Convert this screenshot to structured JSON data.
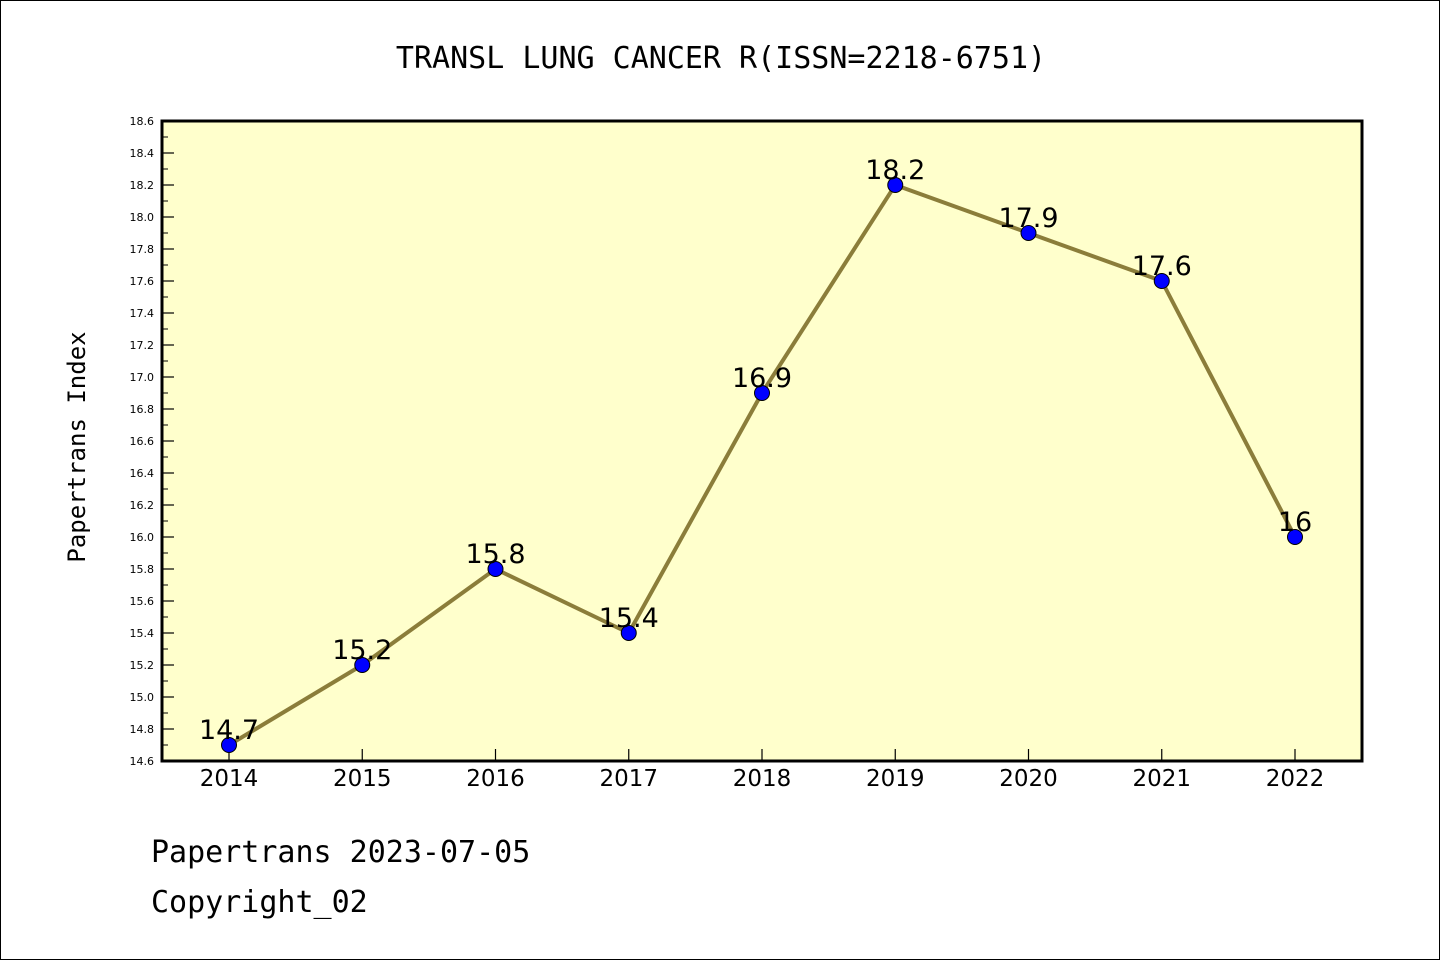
{
  "chart_data": {
    "type": "line",
    "title": "TRANSL LUNG CANCER R(ISSN=2218-6751)",
    "xlabel": "",
    "ylabel": "Papertrans Index",
    "categories": [
      "2014",
      "2015",
      "2016",
      "2017",
      "2018",
      "2019",
      "2020",
      "2021",
      "2022"
    ],
    "series": [
      {
        "values": [
          14.7,
          15.2,
          15.8,
          15.4,
          16.9,
          18.2,
          17.9,
          17.6,
          16.0
        ],
        "labels": [
          "14.7",
          "15.2",
          "15.8",
          "15.4",
          "16.9",
          "18.2",
          "17.9",
          "17.6",
          "16"
        ]
      }
    ],
    "ylim": [
      14.6,
      18.6
    ],
    "yticks": [
      "14.6",
      "14.8",
      "15.0",
      "15.2",
      "15.4",
      "15.6",
      "15.8",
      "16.0",
      "16.2",
      "16.4",
      "16.6",
      "16.8",
      "17.0",
      "17.2",
      "17.4",
      "17.6",
      "17.8",
      "18.0",
      "18.2",
      "18.4",
      "18.6"
    ],
    "grid": false,
    "legend": "none",
    "colors": {
      "plot_background": "#ffffcc",
      "line": "#8b7d3a",
      "marker": "#0000ff"
    }
  },
  "footer": {
    "date_text": "Papertrans 2023-07-05",
    "copyright_text": "Copyright_02"
  }
}
